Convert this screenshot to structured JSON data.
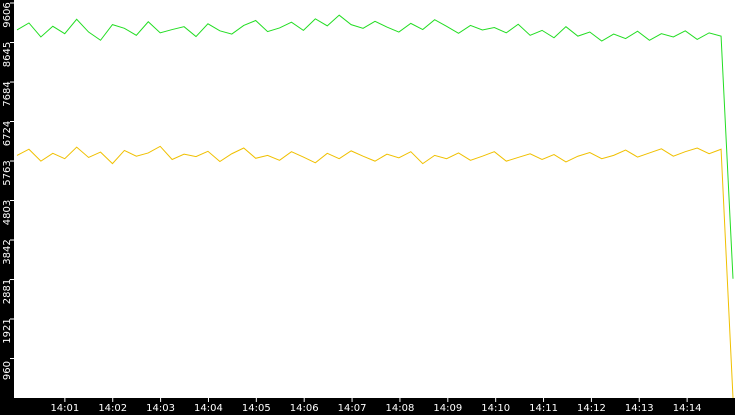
{
  "chart_data": {
    "type": "line",
    "series": [
      {
        "color": "#22dd22",
        "values": [
          8950,
          9120,
          8780,
          9040,
          8860,
          9210,
          8900,
          8700,
          9080,
          8990,
          8820,
          9150,
          8880,
          8960,
          9030,
          8790,
          9100,
          8930,
          8850,
          9060,
          9180,
          8910,
          9000,
          9140,
          8940,
          9220,
          9050,
          9310,
          9080,
          8990,
          9160,
          9020,
          8900,
          9110,
          8960,
          9200,
          9040,
          8870,
          9060,
          8950,
          9010,
          8880,
          9090,
          8820,
          8940,
          8760,
          9030,
          8800,
          8900,
          8680,
          8850,
          8740,
          8920,
          8700,
          8860,
          8780,
          8930,
          8720,
          8880,
          8800,
          2900
        ]
      },
      {
        "color": "#f0c000",
        "values": [
          5900,
          6050,
          5760,
          5950,
          5820,
          6100,
          5850,
          5980,
          5700,
          6020,
          5880,
          5960,
          6120,
          5800,
          5930,
          5870,
          6000,
          5750,
          5940,
          6080,
          5830,
          5900,
          5780,
          5990,
          5860,
          5720,
          5950,
          5820,
          6010,
          5880,
          5760,
          5930,
          5840,
          5990,
          5700,
          5900,
          5820,
          5960,
          5780,
          5880,
          5990,
          5760,
          5850,
          5940,
          5800,
          5920,
          5740,
          5880,
          5970,
          5820,
          5900,
          6030,
          5860,
          5960,
          6060,
          5880,
          5990,
          6080,
          5940,
          6050,
          0
        ]
      }
    ],
    "xticks": [
      "14:01",
      "14:02",
      "14:03",
      "14:04",
      "14:05",
      "14:06",
      "14:07",
      "14:08",
      "14:09",
      "14:10",
      "14:11",
      "14:12",
      "14:13",
      "14:14"
    ],
    "ylim": [
      0,
      9606
    ],
    "yticks": [
      960,
      1921,
      2881,
      3842,
      4803,
      5763,
      6724,
      7684,
      8645,
      9606
    ]
  }
}
